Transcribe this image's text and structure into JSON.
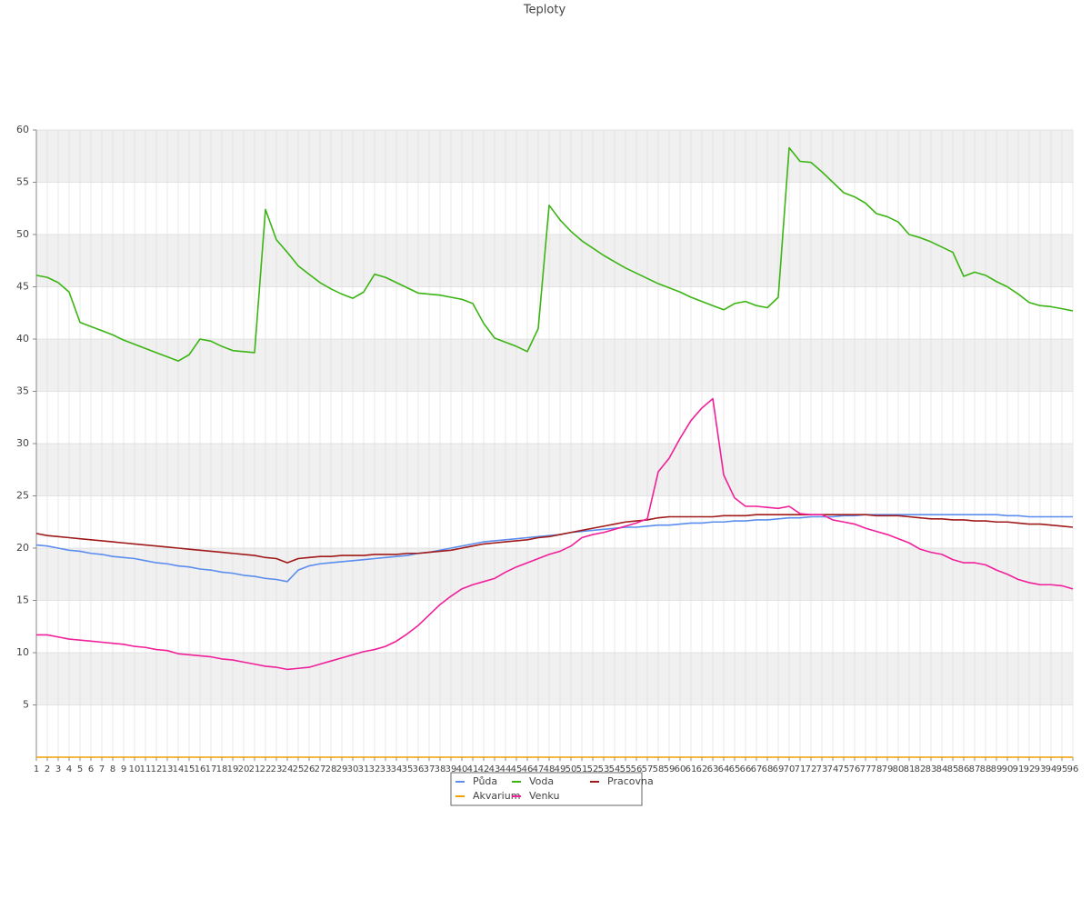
{
  "chart_data": {
    "type": "line",
    "title": "Teploty",
    "categories": [
      1,
      2,
      3,
      4,
      5,
      6,
      7,
      8,
      9,
      10,
      11,
      12,
      13,
      14,
      15,
      16,
      17,
      18,
      19,
      20,
      21,
      22,
      23,
      24,
      25,
      26,
      27,
      28,
      29,
      30,
      31,
      32,
      33,
      34,
      35,
      36,
      37,
      38,
      39,
      40,
      41,
      42,
      43,
      44,
      45,
      46,
      47,
      48,
      49,
      50,
      51,
      52,
      53,
      54,
      55,
      56,
      57,
      58,
      59,
      60,
      61,
      62,
      63,
      64,
      65,
      66,
      67,
      68,
      69,
      70,
      71,
      72,
      73,
      74,
      75,
      76,
      77,
      78,
      79,
      80,
      81,
      82,
      83,
      84,
      85,
      86,
      87,
      88,
      89,
      90,
      91,
      92,
      93,
      94,
      95,
      96
    ],
    "series": [
      {
        "name": "Půda",
        "color": "#5b8def",
        "values": [
          20.3,
          20.2,
          20.0,
          19.8,
          19.7,
          19.5,
          19.4,
          19.2,
          19.1,
          19.0,
          18.8,
          18.6,
          18.5,
          18.3,
          18.2,
          18.0,
          17.9,
          17.7,
          17.6,
          17.4,
          17.3,
          17.1,
          17.0,
          16.8,
          17.9,
          18.3,
          18.5,
          18.6,
          18.7,
          18.8,
          18.9,
          19.0,
          19.1,
          19.2,
          19.3,
          19.5,
          19.6,
          19.8,
          20.0,
          20.2,
          20.4,
          20.6,
          20.7,
          20.8,
          20.9,
          21.0,
          21.1,
          21.2,
          21.3,
          21.5,
          21.6,
          21.7,
          21.8,
          21.9,
          22.0,
          22.0,
          22.1,
          22.2,
          22.2,
          22.3,
          22.4,
          22.4,
          22.5,
          22.5,
          22.6,
          22.6,
          22.7,
          22.7,
          22.8,
          22.9,
          22.9,
          23.0,
          23.0,
          23.0,
          23.1,
          23.1,
          23.2,
          23.2,
          23.2,
          23.2,
          23.2,
          23.2,
          23.2,
          23.2,
          23.2,
          23.2,
          23.2,
          23.2,
          23.2,
          23.1,
          23.1,
          23.0,
          23.0,
          23.0,
          23.0,
          23.0
        ]
      },
      {
        "name": "Voda",
        "color": "#3cb414",
        "values": [
          46.1,
          45.9,
          45.4,
          44.5,
          41.6,
          41.2,
          40.8,
          40.4,
          39.9,
          39.5,
          39.1,
          38.7,
          38.3,
          37.9,
          38.5,
          40.0,
          39.8,
          39.3,
          38.9,
          38.8,
          38.7,
          52.4,
          49.5,
          48.3,
          47.0,
          46.2,
          45.4,
          44.8,
          44.3,
          43.9,
          44.5,
          46.2,
          45.9,
          45.4,
          44.9,
          44.4,
          44.3,
          44.2,
          44.0,
          43.8,
          43.4,
          41.5,
          40.1,
          39.7,
          39.3,
          38.8,
          41.0,
          52.8,
          51.4,
          50.3,
          49.4,
          48.7,
          48.0,
          47.4,
          46.8,
          46.3,
          45.8,
          45.3,
          44.9,
          44.5,
          44.0,
          43.6,
          43.2,
          42.8,
          43.4,
          43.6,
          43.2,
          43.0,
          44.0,
          58.3,
          57.0,
          56.9,
          56.0,
          55.0,
          54.0,
          53.6,
          53.0,
          52.0,
          51.7,
          51.2,
          50.0,
          49.7,
          49.3,
          48.8,
          48.3,
          46.0,
          46.4,
          46.1,
          45.5,
          45.0,
          44.3,
          43.5,
          43.2,
          43.1,
          42.9,
          42.7
        ]
      },
      {
        "name": "Pracovna",
        "color": "#a01a1a",
        "values": [
          21.4,
          21.2,
          21.1,
          21.0,
          20.9,
          20.8,
          20.7,
          20.6,
          20.5,
          20.4,
          20.3,
          20.2,
          20.1,
          20.0,
          19.9,
          19.8,
          19.7,
          19.6,
          19.5,
          19.4,
          19.3,
          19.1,
          19.0,
          18.6,
          19.0,
          19.1,
          19.2,
          19.2,
          19.3,
          19.3,
          19.3,
          19.4,
          19.4,
          19.4,
          19.5,
          19.5,
          19.6,
          19.7,
          19.8,
          20.0,
          20.2,
          20.4,
          20.5,
          20.6,
          20.7,
          20.8,
          21.0,
          21.1,
          21.3,
          21.5,
          21.7,
          21.9,
          22.1,
          22.3,
          22.5,
          22.6,
          22.7,
          22.9,
          23.0,
          23.0,
          23.0,
          23.0,
          23.0,
          23.1,
          23.1,
          23.1,
          23.2,
          23.2,
          23.2,
          23.2,
          23.2,
          23.2,
          23.2,
          23.2,
          23.2,
          23.2,
          23.2,
          23.1,
          23.1,
          23.1,
          23.0,
          22.9,
          22.8,
          22.8,
          22.7,
          22.7,
          22.6,
          22.6,
          22.5,
          22.5,
          22.4,
          22.3,
          22.3,
          22.2,
          22.1,
          22.0
        ]
      },
      {
        "name": "Akvarium",
        "color": "#f0a000",
        "values": [
          0,
          0,
          0,
          0,
          0,
          0,
          0,
          0,
          0,
          0,
          0,
          0,
          0,
          0,
          0,
          0,
          0,
          0,
          0,
          0,
          0,
          0,
          0,
          0,
          0,
          0,
          0,
          0,
          0,
          0,
          0,
          0,
          0,
          0,
          0,
          0,
          0,
          0,
          0,
          0,
          0,
          0,
          0,
          0,
          0,
          0,
          0,
          0,
          0,
          0,
          0,
          0,
          0,
          0,
          0,
          0,
          0,
          0,
          0,
          0,
          0,
          0,
          0,
          0,
          0,
          0,
          0,
          0,
          0,
          0,
          0,
          0,
          0,
          0,
          0,
          0,
          0,
          0,
          0,
          0,
          0,
          0,
          0,
          0,
          0,
          0,
          0,
          0,
          0,
          0,
          0,
          0,
          0,
          0,
          0,
          0
        ]
      },
      {
        "name": "Venku",
        "color": "#f0209a",
        "values": [
          11.7,
          11.7,
          11.5,
          11.3,
          11.2,
          11.1,
          11.0,
          10.9,
          10.8,
          10.6,
          10.5,
          10.3,
          10.2,
          9.9,
          9.8,
          9.7,
          9.6,
          9.4,
          9.3,
          9.1,
          8.9,
          8.7,
          8.6,
          8.4,
          8.5,
          8.6,
          8.9,
          9.2,
          9.5,
          9.8,
          10.1,
          10.3,
          10.6,
          11.1,
          11.8,
          12.6,
          13.6,
          14.6,
          15.4,
          16.1,
          16.5,
          16.8,
          17.1,
          17.7,
          18.2,
          18.6,
          19.0,
          19.4,
          19.7,
          20.2,
          21.0,
          21.3,
          21.5,
          21.8,
          22.1,
          22.4,
          22.8,
          27.3,
          28.6,
          30.5,
          32.2,
          33.4,
          34.3,
          27.0,
          24.8,
          24.0,
          24.0,
          23.9,
          23.8,
          24.0,
          23.3,
          23.2,
          23.2,
          22.7,
          22.5,
          22.3,
          21.9,
          21.6,
          21.3,
          20.9,
          20.5,
          19.9,
          19.6,
          19.4,
          18.9,
          18.6,
          18.6,
          18.4,
          17.9,
          17.5,
          17.0,
          16.7,
          16.5,
          16.5,
          16.4,
          16.1
        ]
      }
    ],
    "ylim": [
      0,
      60
    ],
    "yticks": [
      5,
      10,
      15,
      20,
      25,
      30,
      35,
      40,
      45,
      50,
      55,
      60
    ],
    "grid": true
  }
}
